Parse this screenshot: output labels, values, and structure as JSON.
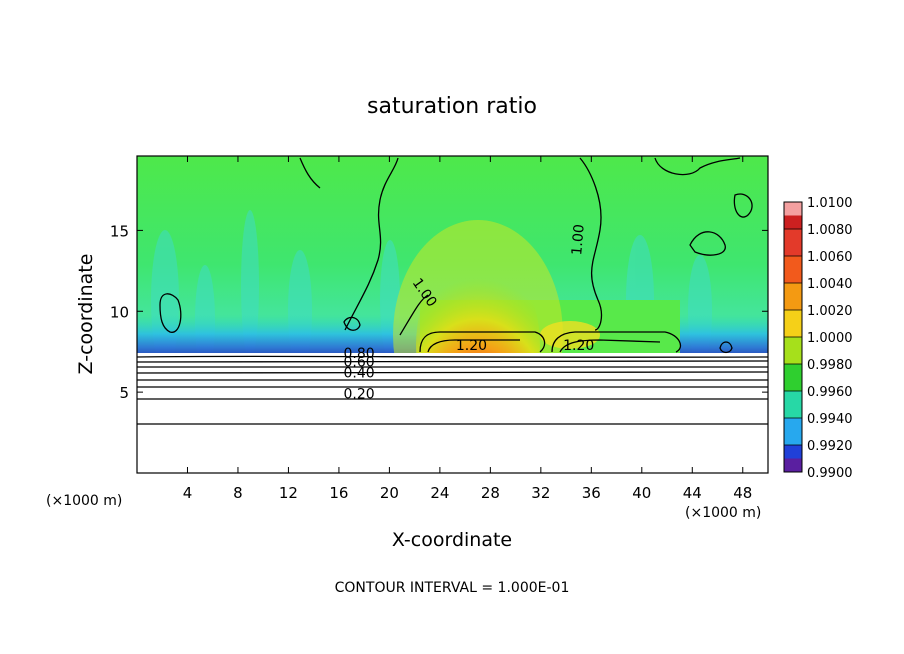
{
  "chart_data": {
    "type": "heatmap",
    "title": "saturation ratio",
    "xlabel": "X-coordinate",
    "ylabel": "Z-coordinate",
    "x_unit": "(×1000 m)",
    "x_unit_right": "(×1000 m)",
    "xlim": [
      0,
      50
    ],
    "ylim": [
      0,
      19.6
    ],
    "x_ticks": [
      4,
      8,
      12,
      16,
      20,
      24,
      28,
      32,
      36,
      40,
      44,
      48
    ],
    "y_ticks": [
      5,
      10,
      15
    ],
    "footer": "CONTOUR INTERVAL = 1.000E-01",
    "contour_labels": [
      {
        "text": "1.00",
        "x": 22.5,
        "y": 11.0,
        "rotate": 55
      },
      {
        "text": "1.00",
        "x": 35.3,
        "y": 14.4,
        "rotate": -85
      },
      {
        "text": "1.20",
        "x": 26.5,
        "y": 7.6,
        "rotate": 0
      },
      {
        "text": "1.20",
        "x": 35.0,
        "y": 7.6,
        "rotate": 0
      },
      {
        "text": "0.80",
        "x": 17.6,
        "y": 7.1,
        "rotate": 0
      },
      {
        "text": "0.60",
        "x": 17.6,
        "y": 6.6,
        "rotate": 0
      },
      {
        "text": "0.40",
        "x": 17.6,
        "y": 5.9,
        "rotate": 0
      },
      {
        "text": "0.20",
        "x": 17.6,
        "y": 4.6,
        "rotate": 0
      }
    ],
    "colorbar": {
      "labels": [
        "1.0100",
        "1.0080",
        "1.0060",
        "1.0040",
        "1.0020",
        "1.0000",
        "0.9980",
        "0.9960",
        "0.9940",
        "0.9920",
        "0.9900"
      ],
      "colors": [
        "#cc2020",
        "#e33a2a",
        "#f25a1c",
        "#f49a12",
        "#f5d018",
        "#a6e01b",
        "#2fcf2f",
        "#27d8a6",
        "#27a8ee",
        "#2040d8",
        "#5a1fa0"
      ]
    },
    "colors": {
      "background": "#55ee3a",
      "contour": "#000000"
    }
  }
}
